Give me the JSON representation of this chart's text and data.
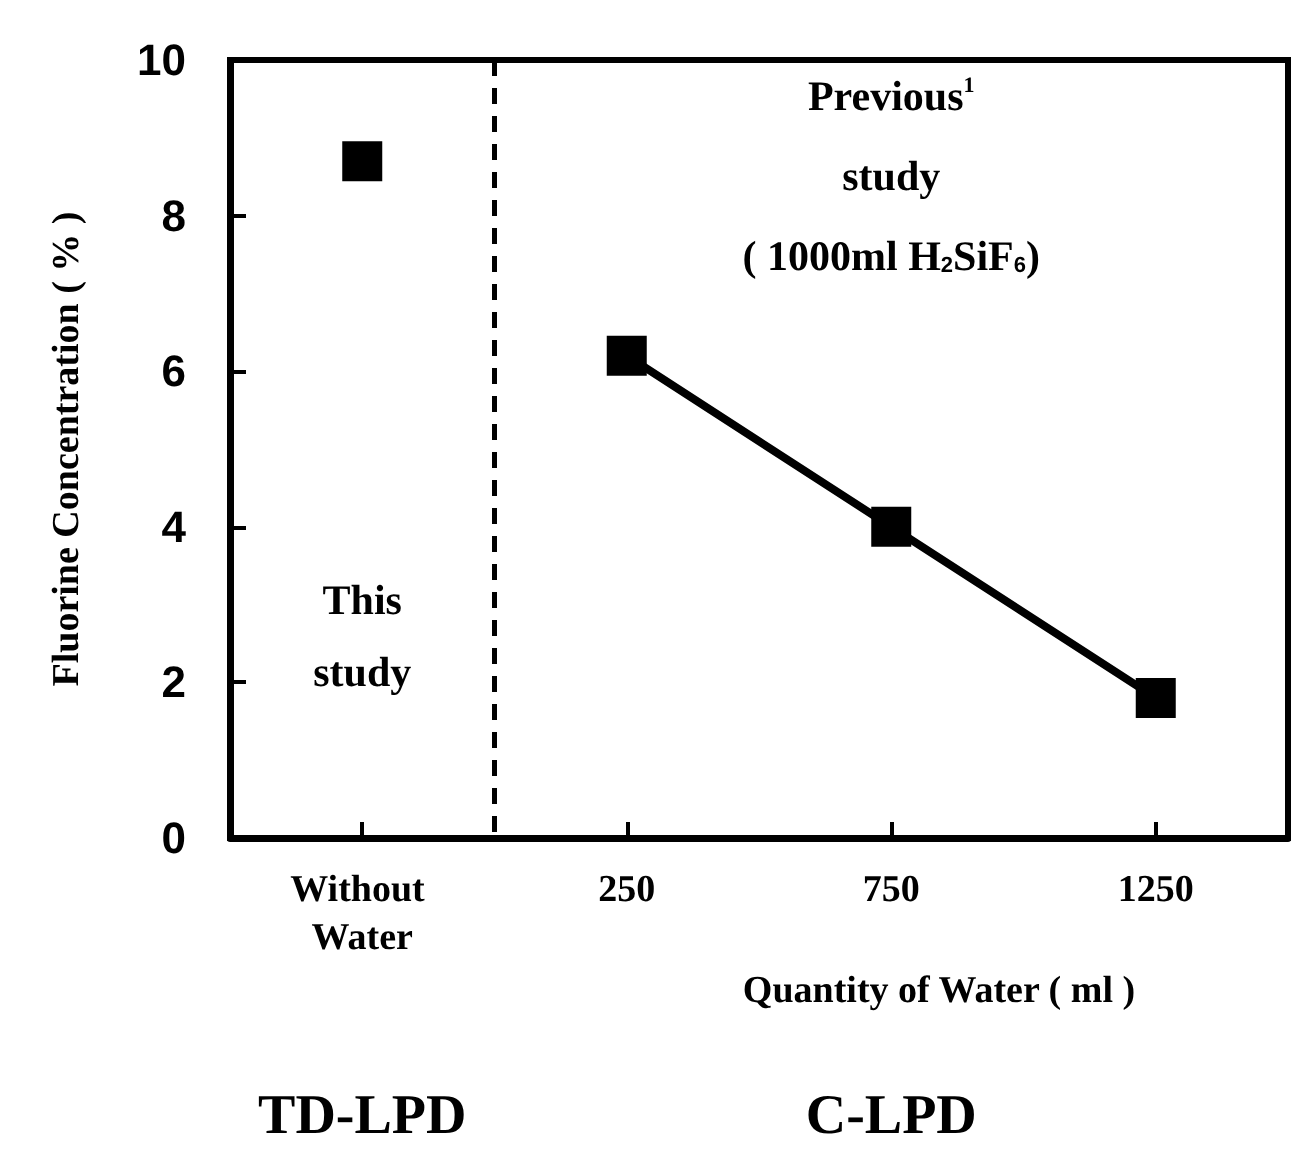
{
  "chart_data": {
    "type": "scatter",
    "xlabel": "Quantity of Water ( ml )",
    "ylabel": "Fluorine Concentration ( % )",
    "categories": [
      "Without Water",
      "250",
      "750",
      "1250"
    ],
    "series": [
      {
        "color": "#000000",
        "values": [
          8.7,
          null,
          null,
          null
        ]
      },
      {
        "type": "line",
        "color": "#000000",
        "values": [
          null,
          6.2,
          4.0,
          1.8
        ]
      }
    ],
    "ylim": [
      0,
      10
    ],
    "yticks": [
      0,
      2,
      4,
      6,
      8,
      10
    ],
    "grid": false,
    "marker": "square",
    "line_style": "solid",
    "annotations": [
      "This study",
      "Previous$^{1}$ study ( 1000ml H$_{2}$SiF$_{6}$)",
      "TD-LPD",
      "C-LPD"
    ]
  }
}
